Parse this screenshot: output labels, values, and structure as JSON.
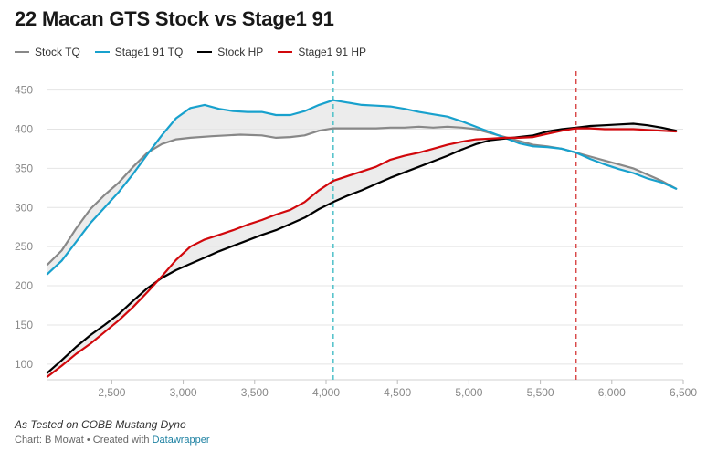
{
  "title": "22 Macan GTS Stock vs Stage1 91",
  "notes": "As Tested on COBB Mustang Dyno",
  "source": {
    "prefix": "Chart: B Mowat • Created with ",
    "tool": "Datawrapper"
  },
  "chart_data": {
    "type": "line",
    "title": "22 Macan GTS Stock vs Stage1 91",
    "xlabel": "",
    "ylabel": "",
    "xlim": [
      2050,
      6500
    ],
    "ylim": [
      80,
      460
    ],
    "x_ticks": [
      2500,
      3000,
      3500,
      4000,
      4500,
      5000,
      5500,
      6000,
      6500
    ],
    "x_tick_labels": [
      "2,500",
      "3,000",
      "3,500",
      "4,000",
      "4,500",
      "5,000",
      "5,500",
      "6,000",
      "6,500"
    ],
    "y_ticks": [
      100,
      150,
      200,
      250,
      300,
      350,
      400,
      450
    ],
    "y_tick_labels": [
      "100",
      "150",
      "200",
      "250",
      "300",
      "350",
      "400",
      "450"
    ],
    "grid": true,
    "legend_position": "top-left",
    "series": [
      {
        "name": "Stock TQ",
        "color": "#888888",
        "points": [
          [
            2050,
            227
          ],
          [
            2150,
            245
          ],
          [
            2250,
            273
          ],
          [
            2350,
            298
          ],
          [
            2450,
            316
          ],
          [
            2550,
            332
          ],
          [
            2650,
            352
          ],
          [
            2750,
            370
          ],
          [
            2850,
            381
          ],
          [
            2950,
            387
          ],
          [
            3050,
            389
          ],
          [
            3200,
            391
          ],
          [
            3400,
            393
          ],
          [
            3550,
            392
          ],
          [
            3650,
            389
          ],
          [
            3750,
            390
          ],
          [
            3850,
            392
          ],
          [
            3950,
            398
          ],
          [
            4050,
            401
          ],
          [
            4150,
            401
          ],
          [
            4250,
            401
          ],
          [
            4350,
            401
          ],
          [
            4450,
            402
          ],
          [
            4550,
            402
          ],
          [
            4650,
            403
          ],
          [
            4750,
            402
          ],
          [
            4850,
            403
          ],
          [
            4950,
            402
          ],
          [
            5050,
            400
          ],
          [
            5150,
            395
          ],
          [
            5250,
            390
          ],
          [
            5350,
            385
          ],
          [
            5450,
            380
          ],
          [
            5550,
            378
          ],
          [
            5650,
            375
          ],
          [
            5750,
            370
          ],
          [
            5850,
            365
          ],
          [
            5950,
            360
          ],
          [
            6050,
            355
          ],
          [
            6150,
            350
          ],
          [
            6250,
            342
          ],
          [
            6350,
            334
          ],
          [
            6450,
            324
          ]
        ]
      },
      {
        "name": "Stage1 91 TQ",
        "color": "#18a1cd",
        "points": [
          [
            2050,
            215
          ],
          [
            2150,
            232
          ],
          [
            2250,
            256
          ],
          [
            2350,
            280
          ],
          [
            2450,
            300
          ],
          [
            2550,
            320
          ],
          [
            2650,
            343
          ],
          [
            2750,
            368
          ],
          [
            2850,
            392
          ],
          [
            2950,
            414
          ],
          [
            3050,
            427
          ],
          [
            3150,
            431
          ],
          [
            3250,
            426
          ],
          [
            3350,
            423
          ],
          [
            3450,
            422
          ],
          [
            3550,
            422
          ],
          [
            3650,
            418
          ],
          [
            3750,
            418
          ],
          [
            3850,
            423
          ],
          [
            3950,
            431
          ],
          [
            4050,
            437
          ],
          [
            4150,
            434
          ],
          [
            4250,
            431
          ],
          [
            4350,
            430
          ],
          [
            4450,
            429
          ],
          [
            4550,
            426
          ],
          [
            4650,
            422
          ],
          [
            4750,
            419
          ],
          [
            4850,
            416
          ],
          [
            4950,
            410
          ],
          [
            5050,
            403
          ],
          [
            5150,
            396
          ],
          [
            5250,
            389
          ],
          [
            5350,
            382
          ],
          [
            5450,
            378
          ],
          [
            5550,
            377
          ],
          [
            5650,
            375
          ],
          [
            5750,
            370
          ],
          [
            5850,
            362
          ],
          [
            5950,
            355
          ],
          [
            6050,
            349
          ],
          [
            6150,
            344
          ],
          [
            6250,
            337
          ],
          [
            6350,
            332
          ],
          [
            6450,
            324
          ]
        ]
      },
      {
        "name": "Stock HP",
        "color": "#000000",
        "points": [
          [
            2050,
            89
          ],
          [
            2150,
            105
          ],
          [
            2250,
            122
          ],
          [
            2350,
            137
          ],
          [
            2450,
            150
          ],
          [
            2550,
            164
          ],
          [
            2650,
            181
          ],
          [
            2750,
            197
          ],
          [
            2850,
            210
          ],
          [
            2950,
            220
          ],
          [
            3050,
            228
          ],
          [
            3150,
            236
          ],
          [
            3250,
            244
          ],
          [
            3350,
            251
          ],
          [
            3450,
            258
          ],
          [
            3550,
            265
          ],
          [
            3650,
            271
          ],
          [
            3750,
            279
          ],
          [
            3850,
            287
          ],
          [
            3950,
            298
          ],
          [
            4050,
            307
          ],
          [
            4150,
            315
          ],
          [
            4250,
            322
          ],
          [
            4350,
            330
          ],
          [
            4450,
            338
          ],
          [
            4550,
            345
          ],
          [
            4650,
            352
          ],
          [
            4750,
            359
          ],
          [
            4850,
            366
          ],
          [
            4950,
            374
          ],
          [
            5050,
            381
          ],
          [
            5150,
            386
          ],
          [
            5250,
            388
          ],
          [
            5350,
            390
          ],
          [
            5450,
            392
          ],
          [
            5550,
            397
          ],
          [
            5650,
            400
          ],
          [
            5750,
            402
          ],
          [
            5850,
            404
          ],
          [
            5950,
            405
          ],
          [
            6050,
            406
          ],
          [
            6150,
            407
          ],
          [
            6250,
            405
          ],
          [
            6350,
            402
          ],
          [
            6450,
            398
          ]
        ]
      },
      {
        "name": "Stage1 91 HP",
        "color": "#d1080c",
        "points": [
          [
            2050,
            84
          ],
          [
            2150,
            98
          ],
          [
            2250,
            113
          ],
          [
            2350,
            126
          ],
          [
            2450,
            141
          ],
          [
            2550,
            156
          ],
          [
            2650,
            173
          ],
          [
            2750,
            192
          ],
          [
            2850,
            212
          ],
          [
            2950,
            233
          ],
          [
            3050,
            250
          ],
          [
            3150,
            259
          ],
          [
            3250,
            265
          ],
          [
            3350,
            271
          ],
          [
            3450,
            278
          ],
          [
            3550,
            284
          ],
          [
            3650,
            291
          ],
          [
            3750,
            297
          ],
          [
            3850,
            307
          ],
          [
            3950,
            322
          ],
          [
            4050,
            334
          ],
          [
            4150,
            340
          ],
          [
            4250,
            346
          ],
          [
            4350,
            352
          ],
          [
            4450,
            361
          ],
          [
            4550,
            366
          ],
          [
            4650,
            370
          ],
          [
            4750,
            375
          ],
          [
            4850,
            380
          ],
          [
            4950,
            384
          ],
          [
            5050,
            387
          ],
          [
            5150,
            388
          ],
          [
            5250,
            389
          ],
          [
            5350,
            389
          ],
          [
            5450,
            390
          ],
          [
            5550,
            394
          ],
          [
            5650,
            398
          ],
          [
            5750,
            401
          ],
          [
            5850,
            401
          ],
          [
            5950,
            400
          ],
          [
            6050,
            400
          ],
          [
            6150,
            400
          ],
          [
            6250,
            399
          ],
          [
            6350,
            398
          ],
          [
            6450,
            397
          ]
        ]
      }
    ],
    "reference_lines": [
      {
        "x": 4050,
        "color": "#4fc1c9"
      },
      {
        "x": 5750,
        "color": "#d94a4a"
      }
    ],
    "shaded_between": [
      {
        "series": [
          "Stock TQ",
          "Stage1 91 TQ"
        ],
        "color": "#e5e5e5"
      },
      {
        "series": [
          "Stock HP",
          "Stage1 91 HP"
        ],
        "color": "#e5e5e5"
      }
    ]
  }
}
